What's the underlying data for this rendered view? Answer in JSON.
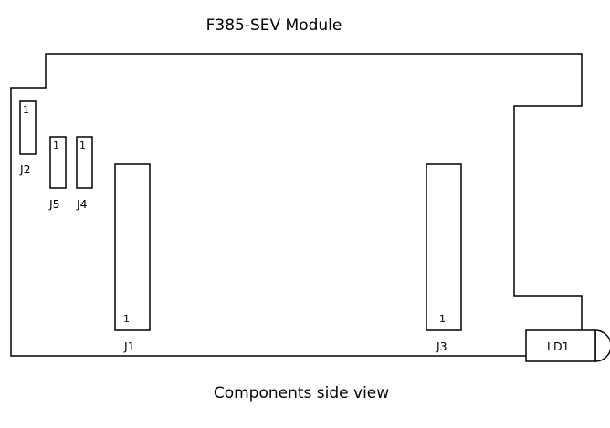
{
  "title": "F385-SEV Module",
  "caption": "Components side view",
  "components": {
    "j2": {
      "label": "J2",
      "pin": "1"
    },
    "j5": {
      "label": "J5",
      "pin": "1"
    },
    "j4": {
      "label": "J4",
      "pin": "1"
    },
    "j1": {
      "label": "J1",
      "pin": "1"
    },
    "j3": {
      "label": "J3",
      "pin": "1"
    },
    "ld1": {
      "label": "LD1"
    }
  }
}
